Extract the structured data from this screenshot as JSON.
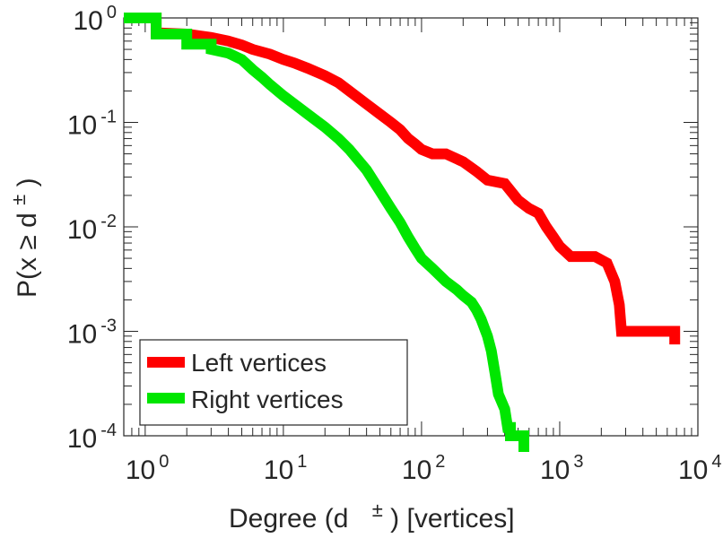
{
  "chart_data": {
    "type": "line",
    "xscale": "log",
    "yscale": "log",
    "xlim": [
      0.7,
      10000
    ],
    "ylim": [
      0.0001,
      1
    ],
    "xlabel": {
      "prefix": "Degree (d",
      "sup": "±",
      "suffix": ") [vertices]"
    },
    "ylabel": {
      "prefix": "P(x ≥ d",
      "sup": "±",
      "suffix": ")"
    },
    "x_ticks": [
      {
        "value": 1,
        "base": "10",
        "exp": "0"
      },
      {
        "value": 10,
        "base": "10",
        "exp": "1"
      },
      {
        "value": 100,
        "base": "10",
        "exp": "2"
      },
      {
        "value": 1000,
        "base": "10",
        "exp": "3"
      },
      {
        "value": 10000,
        "base": "10",
        "exp": "4"
      }
    ],
    "y_ticks": [
      {
        "value": 1,
        "base": "10",
        "exp": "0"
      },
      {
        "value": 0.1,
        "base": "10",
        "exp": "-1"
      },
      {
        "value": 0.01,
        "base": "10",
        "exp": "-2"
      },
      {
        "value": 0.001,
        "base": "10",
        "exp": "-3"
      },
      {
        "value": 0.0001,
        "base": "10",
        "exp": "-4"
      }
    ],
    "grid": false,
    "legend_position": "bottom-left",
    "series": [
      {
        "name": "Left vertices",
        "color": "#ff0000",
        "points": [
          [
            0.7,
            1.0
          ],
          [
            1.2,
            1.0
          ],
          [
            1.2,
            0.72
          ],
          [
            2.0,
            0.7
          ],
          [
            3.0,
            0.65
          ],
          [
            4.0,
            0.6
          ],
          [
            5.0,
            0.55
          ],
          [
            6.0,
            0.5
          ],
          [
            8.0,
            0.45
          ],
          [
            10.0,
            0.4
          ],
          [
            12.0,
            0.37
          ],
          [
            15.0,
            0.33
          ],
          [
            20.0,
            0.28
          ],
          [
            25.0,
            0.24
          ],
          [
            30.0,
            0.2
          ],
          [
            40.0,
            0.15
          ],
          [
            50.0,
            0.12
          ],
          [
            60.0,
            0.1
          ],
          [
            70.0,
            0.085
          ],
          [
            80.0,
            0.07
          ],
          [
            90.0,
            0.062
          ],
          [
            100.0,
            0.055
          ],
          [
            120.0,
            0.05
          ],
          [
            150.0,
            0.05
          ],
          [
            200.0,
            0.042
          ],
          [
            250.0,
            0.034
          ],
          [
            300.0,
            0.028
          ],
          [
            400.0,
            0.026
          ],
          [
            500.0,
            0.018
          ],
          [
            600.0,
            0.015
          ],
          [
            700.0,
            0.0135
          ],
          [
            800.0,
            0.01
          ],
          [
            900.0,
            0.008
          ],
          [
            1000.0,
            0.0065
          ],
          [
            1200.0,
            0.0052
          ],
          [
            1500.0,
            0.0052
          ],
          [
            1800.0,
            0.0052
          ],
          [
            2200.0,
            0.0045
          ],
          [
            2500.0,
            0.003
          ],
          [
            2700.0,
            0.0018
          ],
          [
            2800.0,
            0.001
          ],
          [
            6800.0,
            0.001
          ],
          [
            6800.0,
            0.00075
          ]
        ]
      },
      {
        "name": "Right vertices",
        "color": "#00e600",
        "points": [
          [
            0.7,
            1.0
          ],
          [
            1.2,
            1.0
          ],
          [
            1.2,
            0.7
          ],
          [
            2.0,
            0.7
          ],
          [
            2.0,
            0.56
          ],
          [
            3.0,
            0.56
          ],
          [
            3.0,
            0.5
          ],
          [
            4.0,
            0.46
          ],
          [
            5.0,
            0.4
          ],
          [
            6.0,
            0.32
          ],
          [
            7.0,
            0.27
          ],
          [
            8.0,
            0.23
          ],
          [
            10.0,
            0.18
          ],
          [
            12.0,
            0.15
          ],
          [
            15.0,
            0.12
          ],
          [
            20.0,
            0.09
          ],
          [
            25.0,
            0.07
          ],
          [
            30.0,
            0.055
          ],
          [
            40.0,
            0.035
          ],
          [
            50.0,
            0.022
          ],
          [
            60.0,
            0.015
          ],
          [
            70.0,
            0.011
          ],
          [
            80.0,
            0.008
          ],
          [
            90.0,
            0.0062
          ],
          [
            100.0,
            0.005
          ],
          [
            120.0,
            0.004
          ],
          [
            150.0,
            0.003
          ],
          [
            180.0,
            0.0025
          ],
          [
            200.0,
            0.0022
          ],
          [
            230.0,
            0.0019
          ],
          [
            250.0,
            0.0016
          ],
          [
            270.0,
            0.0013
          ],
          [
            300.0,
            0.0009
          ],
          [
            320.0,
            0.00065
          ],
          [
            340.0,
            0.0004
          ],
          [
            360.0,
            0.00025
          ],
          [
            400.0,
            0.00018
          ],
          [
            420.0,
            0.00012
          ],
          [
            440.0,
            0.00012
          ],
          [
            440.0,
            0.0001
          ],
          [
            550.0,
            0.0001
          ],
          [
            550.0,
            7e-05
          ]
        ]
      }
    ]
  }
}
